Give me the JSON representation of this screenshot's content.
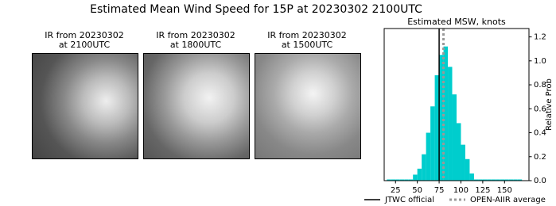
{
  "title": "Estimated Mean Wind Speed for 15P at 20230302 2100UTC",
  "images": [
    {
      "title": "IR from 20230302\nat 2100UTC"
    },
    {
      "title": "IR from 20230302\nat 1800UTC"
    },
    {
      "title": "IR from 20230302\nat 1500UTC"
    }
  ],
  "chart_data": {
    "type": "histogram",
    "title": "Estimated MSW, knots",
    "ylabel": "Relative Prob",
    "bins": [
      15,
      20,
      25,
      30,
      35,
      40,
      45,
      50,
      55,
      60,
      65,
      70,
      75,
      80,
      85,
      90,
      95,
      100,
      105,
      110,
      115,
      120,
      125,
      130,
      135,
      140,
      145,
      150,
      155,
      160,
      165,
      170
    ],
    "values": [
      0.01,
      0.01,
      0.01,
      0.01,
      0.01,
      0.01,
      0.05,
      0.1,
      0.22,
      0.4,
      0.62,
      0.88,
      1.05,
      1.12,
      0.95,
      0.72,
      0.48,
      0.3,
      0.18,
      0.06,
      0.01,
      0.01,
      0.01,
      0.01,
      0.01,
      0.01,
      0.01,
      0.01,
      0.01,
      0.01,
      0.01
    ],
    "color": "#00cdcd",
    "xlim": [
      12,
      178
    ],
    "ylim": [
      0,
      1.27
    ],
    "xticks": [
      25,
      50,
      75,
      100,
      125,
      150
    ],
    "yticks": [
      {
        "value": 0,
        "label": "0.0"
      },
      0.2,
      0.4,
      0.6,
      0.8,
      {
        "value": 1,
        "label": "1.0"
      },
      1.2
    ],
    "yaxis_side": "right",
    "lines": [
      {
        "name": "JTWC official",
        "x": 75,
        "color": "#000000",
        "style": "solid"
      },
      {
        "name": "OPEN-AIIR average",
        "x": 80,
        "color": "#999999",
        "style": "dotted"
      }
    ],
    "legend": "bottom"
  }
}
